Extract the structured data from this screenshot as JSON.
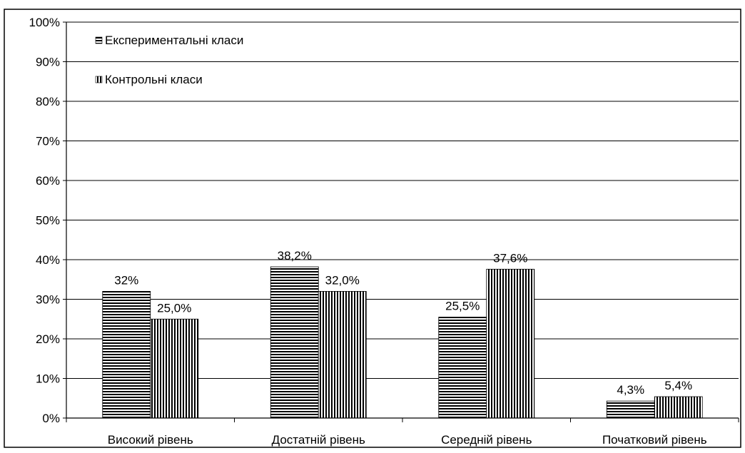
{
  "chart_data": {
    "type": "bar",
    "categories": [
      "Високий рівень",
      "Достатній рівень",
      "Середній рівень",
      "Початковий  рівень"
    ],
    "series": [
      {
        "name": "Експериментальні класи",
        "values": [
          32,
          38.2,
          25.5,
          4.3
        ],
        "labels": [
          "32%",
          "38,2%",
          "25,5%",
          "4,3%"
        ],
        "pattern": "horizontal-stripes"
      },
      {
        "name": "Контрольні класи",
        "values": [
          25.0,
          32.0,
          37.6,
          5.4
        ],
        "labels": [
          "25,0%",
          "32,0%",
          "37,6%",
          "5,4%"
        ],
        "pattern": "vertical-stripes"
      }
    ],
    "ylim": [
      0,
      100
    ],
    "yticks": [
      "0%",
      "10%",
      "20%",
      "30%",
      "40%",
      "50%",
      "60%",
      "70%",
      "80%",
      "90%",
      "100%"
    ],
    "title": "",
    "xlabel": "",
    "ylabel": "",
    "grid": true,
    "legend_position": "top-left",
    "colors": {
      "stripe": "#000000",
      "background": "#ffffff",
      "grid": "#000000"
    }
  }
}
